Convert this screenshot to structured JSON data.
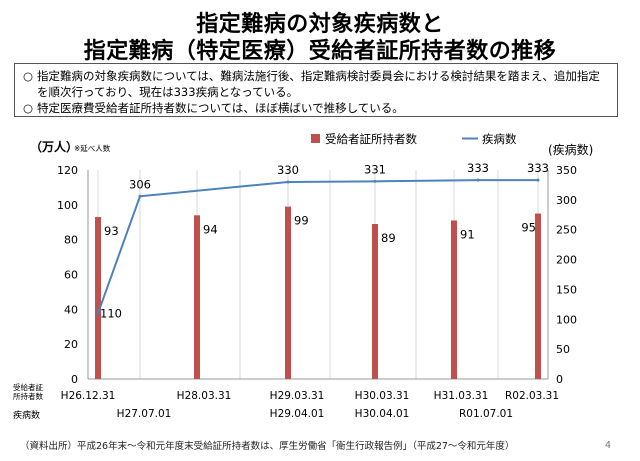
{
  "title_line1": "指定難病の対象疾病数と",
  "title_line2": "指定難病（特定医療）受給者証所持者数の推移",
  "notes": [
    {
      "bullet": "○",
      "text": "指定難病の対象疾病数については、難病法施行後、指定難病検討委員会における検討結果を踏まえ、追加指定を順次行っており、現在は333疾病となっている。"
    },
    {
      "bullet": "○",
      "text": "特定医療費受給者証所持者数については、ほぼ横ばいで推移している。"
    }
  ],
  "footer": "（資料出所）平成26年末～令和元年度末受給証所持者数は、厚生労働省「衛生行政報告例」（平成27～令和元年度）",
  "page_number": "4",
  "chart_data": {
    "type": "bar+line",
    "y_left_label": "（万人）",
    "y_left_note": "※延べ人数",
    "y_right_label": "(疾病数)",
    "y_left_range": [
      0,
      120
    ],
    "y_left_ticks": [
      "0",
      "20",
      "40",
      "60",
      "80",
      "100",
      "120"
    ],
    "y_right_range": [
      0,
      350
    ],
    "y_right_ticks": [
      "0",
      "50",
      "100",
      "150",
      "200",
      "250",
      "300",
      "350"
    ],
    "legend": [
      "受給者証所持者数",
      "疾病数"
    ],
    "legend_position": "top",
    "colors": {
      "bar": "#c0504d",
      "line": "#4f81bd"
    },
    "bar_row_label": "受給者証\n所持者数",
    "line_row_label": "疾病数",
    "bars": [
      {
        "date": "H26.12.31",
        "value": 93,
        "label": "93"
      },
      {
        "date": "H28.03.31",
        "value": 94,
        "label": "94"
      },
      {
        "date": "H29.03.31",
        "value": 99,
        "label": "99"
      },
      {
        "date": "H30.03.31",
        "value": 89,
        "label": "89"
      },
      {
        "date": "H31.03.31",
        "value": 91,
        "label": "91"
      },
      {
        "date": "R02.03.31",
        "value": 95,
        "label": "95"
      }
    ],
    "line": [
      {
        "date": "H26.12.31",
        "value": 110,
        "label": "110"
      },
      {
        "date": "H27.07.01",
        "value": 306,
        "label": "306"
      },
      {
        "date": "H29.04.01",
        "value": 330,
        "label": "330"
      },
      {
        "date": "H30.04.01",
        "value": 331,
        "label": "331"
      },
      {
        "date": "R01.07.01",
        "value": 333,
        "label": "333"
      },
      {
        "date": "R02.03.31",
        "value": 333,
        "label": "333"
      }
    ],
    "bar_date_labels": [
      "H26.12.31",
      "H28.03.31",
      "H29.03.31",
      "H30.03.31",
      "H31.03.31",
      "R02.03.31"
    ],
    "line_date_labels": [
      "H27.07.01",
      "H29.04.01",
      "H30.04.01",
      "R01.07.01"
    ],
    "grid": "vertical"
  }
}
